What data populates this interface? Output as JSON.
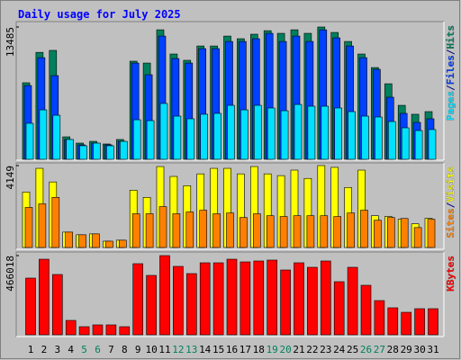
{
  "chart_data": [
    {
      "type": "bar",
      "title": "Daily usage for July 2025",
      "ylim": [
        0,
        13485
      ],
      "yticks": [
        13485
      ],
      "legend_separator": "/",
      "series": [
        {
          "name": "Hits",
          "color": "#00805c",
          "values": [
            7800,
            10900,
            11100,
            2290,
            1650,
            1830,
            1560,
            2020,
            10000,
            9810,
            13200,
            10730,
            10090,
            11550,
            11550,
            12560,
            12290,
            12750,
            13110,
            12840,
            13200,
            12840,
            13485,
            12930,
            12010,
            10730,
            9350,
            7700,
            5500,
            4590,
            4860
          ]
        },
        {
          "name": "Files",
          "color": "#0040ff",
          "values": [
            7520,
            10360,
            8530,
            2020,
            1470,
            1650,
            1470,
            1830,
            9810,
            8620,
            12560,
            10270,
            9810,
            11280,
            11280,
            12010,
            12010,
            12290,
            12840,
            12010,
            12560,
            12010,
            13200,
            12380,
            11550,
            10360,
            9170,
            6330,
            4680,
            3760,
            4130
          ]
        },
        {
          "name": "Pages",
          "color": "#00e0ff",
          "values": [
            3670,
            5040,
            4490,
            2020,
            1380,
            1650,
            1380,
            1830,
            4030,
            3940,
            5690,
            4400,
            4130,
            4590,
            4680,
            5500,
            5040,
            5500,
            5230,
            4950,
            5590,
            5410,
            5410,
            5230,
            4860,
            4400,
            4310,
            3850,
            3210,
            2930,
            3030
          ]
        }
      ]
    },
    {
      "type": "bar",
      "ylim": [
        0,
        4149
      ],
      "yticks": [
        4149
      ],
      "legend_separator": "/",
      "series": [
        {
          "name": "Visits",
          "color": "#ffff00",
          "values": [
            2810,
            4010,
            3320,
            780,
            645,
            690,
            320,
            370,
            2900,
            2540,
            4100,
            3600,
            3130,
            3730,
            4010,
            4010,
            3730,
            4100,
            3730,
            3640,
            3920,
            3500,
            4149,
            4060,
            3040,
            3920,
            1610,
            1570,
            1430,
            1200,
            1480
          ]
        },
        {
          "name": "Sites",
          "color": "#ff8000",
          "values": [
            2030,
            2210,
            2540,
            780,
            645,
            690,
            320,
            370,
            1710,
            1710,
            2070,
            1710,
            1800,
            1890,
            1710,
            1750,
            1520,
            1710,
            1610,
            1570,
            1610,
            1610,
            1610,
            1570,
            1750,
            1890,
            1380,
            1520,
            1470,
            1010,
            1430
          ]
        }
      ]
    },
    {
      "type": "bar",
      "ylim": [
        0,
        466018
      ],
      "yticks": [
        466018
      ],
      "categories": [
        "1",
        "2",
        "3",
        "4",
        "5",
        "6",
        "7",
        "8",
        "9",
        "10",
        "11",
        "12",
        "13",
        "14",
        "15",
        "16",
        "17",
        "18",
        "19",
        "20",
        "21",
        "22",
        "23",
        "24",
        "25",
        "26",
        "27",
        "28",
        "29",
        "30",
        "31"
      ],
      "category_colors": [
        "#000",
        "#000",
        "#000",
        "#000",
        "#00805c",
        "#00805c",
        "#000",
        "#000",
        "#000",
        "#000",
        "#000",
        "#00805c",
        "#00805c",
        "#000",
        "#000",
        "#000",
        "#000",
        "#000",
        "#00805c",
        "#00805c",
        "#000",
        "#000",
        "#000",
        "#000",
        "#000",
        "#00805c",
        "#00805c",
        "#000",
        "#000",
        "#000",
        "#000"
      ],
      "series": [
        {
          "name": "KBytes",
          "color": "#ff0000",
          "values": [
            333600,
            444800,
            354800,
            84700,
            47700,
            58300,
            58300,
            47700,
            418400,
            349500,
            466018,
            402500,
            360100,
            423700,
            423700,
            444800,
            429000,
            434300,
            439600,
            381300,
            423700,
            397200,
            434300,
            312500,
            397200,
            291300,
            201200,
            158900,
            132400,
            153600,
            153600
          ]
        }
      ]
    }
  ]
}
